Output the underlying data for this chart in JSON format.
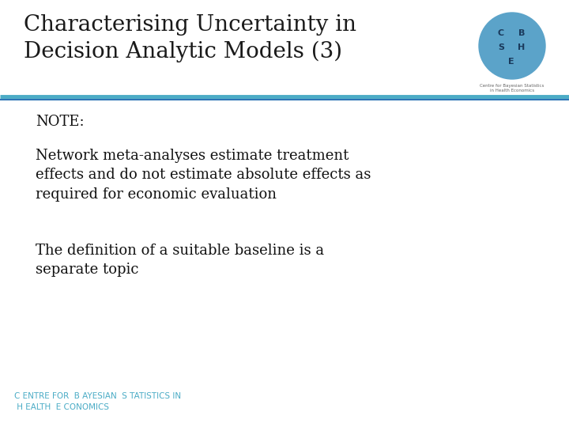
{
  "title_line1": "Characterising Uncertainty in",
  "title_line2": "Decision Analytic Models (3)",
  "title_color": "#1a1a1a",
  "title_fontsize": 20,
  "separator_color_top": "#4bacc6",
  "separator_color_bottom": "#2e75b6",
  "note_label": "NOTE:",
  "bullet1": "Network meta-analyses estimate treatment\neffects and do not estimate absolute effects as\nrequired for economic evaluation",
  "bullet2": "The definition of a suitable baseline is a\nseparate topic",
  "body_fontsize": 13,
  "body_color": "#111111",
  "footer_text": "C ENTRE FOR  B AYESIAN  S TATISTICS IN\n H EALTH  E CONOMICS",
  "footer_color": "#4bacc6",
  "footer_fontsize": 7.5,
  "bg_color": "#ffffff",
  "logo_circle_color": "#5ba3c9",
  "logo_text_color": "#1a3a5c"
}
